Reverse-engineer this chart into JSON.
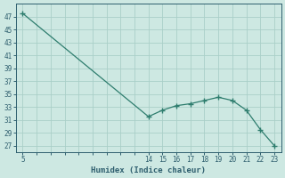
{
  "x": [
    5,
    14,
    15,
    16,
    17,
    18,
    19,
    20,
    21,
    22,
    23
  ],
  "y": [
    47.5,
    31.5,
    32.5,
    33.2,
    33.5,
    34.0,
    34.5,
    34.0,
    32.5,
    29.5,
    27.0
  ],
  "line_color": "#2e7d6e",
  "marker": "+",
  "marker_size": 4,
  "bg_color": "#cde8e2",
  "grid_color": "#aacfc8",
  "text_color": "#2e5e6e",
  "xlabel": "Humidex (Indice chaleur)",
  "xlim": [
    4.5,
    23.5
  ],
  "ylim": [
    26,
    49
  ],
  "yticks": [
    27,
    29,
    31,
    33,
    35,
    37,
    39,
    41,
    43,
    45,
    47
  ],
  "xgrid_ticks": [
    5,
    6,
    7,
    8,
    9,
    10,
    11,
    12,
    13,
    14,
    15,
    16,
    17,
    18,
    19,
    20,
    21,
    22,
    23
  ],
  "xlabel_ticks": [
    5,
    14,
    15,
    16,
    17,
    18,
    19,
    20,
    21,
    22,
    23
  ]
}
